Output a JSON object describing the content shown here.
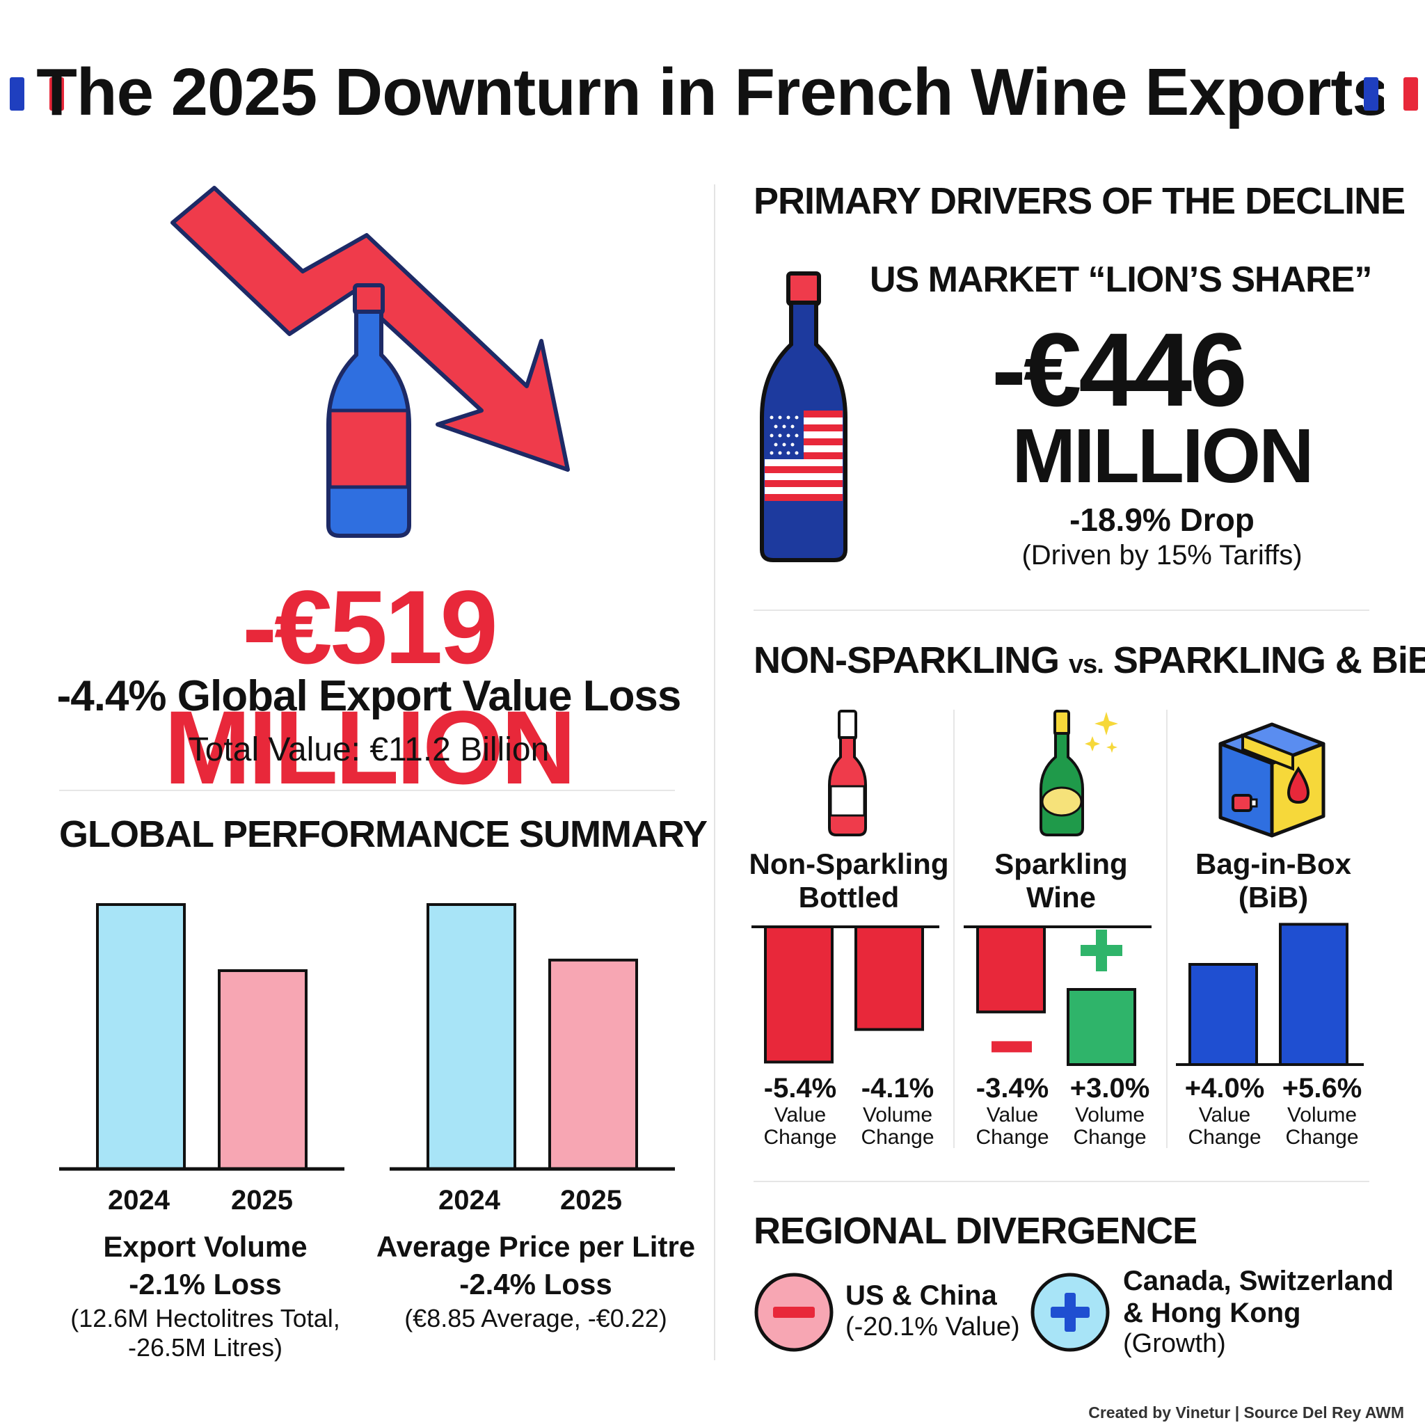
{
  "title": "The 2025 Downturn in French Wine Exports",
  "colors": {
    "red": "#e8283a",
    "blue": "#1f4fd1",
    "light_blue": "#a8e4f7",
    "pink": "#f7a6b3",
    "green": "#2fb46a"
  },
  "hero": {
    "amount": "-€519 MILLION",
    "subtitle": "-4.4% Global Export Value Loss",
    "total": "Total Value: €11.2 Billion"
  },
  "global_summary": {
    "heading": "GLOBAL PERFORMANCE SUMMARY",
    "volume": {
      "years": [
        "2024",
        "2025"
      ],
      "values_relative": [
        1.0,
        0.75
      ],
      "title": "Export Volume",
      "loss": "-2.1% Loss",
      "note_line1": "(12.6M Hectolitres Total,",
      "note_line2": "-26.5M Litres)"
    },
    "price": {
      "years": [
        "2024",
        "2025"
      ],
      "values_relative": [
        1.0,
        0.79
      ],
      "title": "Average Price per Litre",
      "loss": "-2.4% Loss",
      "note_line1": "(€8.85 Average, -€0.22)"
    }
  },
  "drivers": {
    "heading": "PRIMARY DRIVERS OF THE DECLINE",
    "us_heading": "US MARKET “LION’S SHARE”",
    "amount": "-€446",
    "amount_unit": "MILLION",
    "drop": "-18.9% Drop",
    "cause": "(Driven by 15% Tariffs)"
  },
  "segments": {
    "heading_a": "NON-SPARKLING",
    "heading_vs": "vs.",
    "heading_b": "SPARKLING & BiB",
    "items": [
      {
        "name_line1": "Non-Sparkling",
        "name_line2": "Bottled",
        "value_pct": "-5.4%",
        "volume_pct": "-4.1%",
        "value_change": -5.4,
        "volume_change": -4.1
      },
      {
        "name_line1": "Sparkling",
        "name_line2": "Wine",
        "value_pct": "-3.4%",
        "volume_pct": "+3.0%",
        "value_change": -3.4,
        "volume_change": 3.0
      },
      {
        "name_line1": "Bag-in-Box",
        "name_line2": "(BiB)",
        "value_pct": "+4.0%",
        "volume_pct": "+5.6%",
        "value_change": 4.0,
        "volume_change": 5.6
      }
    ],
    "value_label_1": "Value",
    "value_label_2": "Change",
    "volume_label_1": "Volume",
    "volume_label_2": "Change"
  },
  "regional": {
    "heading": "REGIONAL DIVERGENCE",
    "negative_name": "US & China",
    "negative_note": "(-20.1% Value)",
    "positive_name_line1": "Canada, Switzerland",
    "positive_name_line2": "& Hong Kong",
    "positive_note": "(Growth)"
  },
  "footer": "Created by Vinetur | Source Del Rey AWM"
}
